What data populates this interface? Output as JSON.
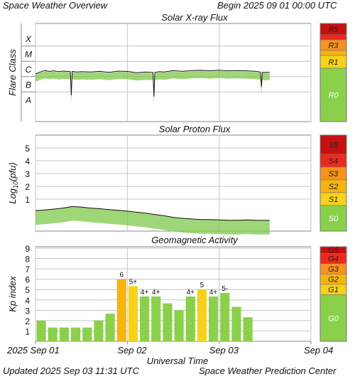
{
  "header": {
    "title": "Space Weather Overview",
    "begin": "Begin 2025 09 01 00:00 UTC"
  },
  "footer": {
    "updated": "Updated 2025 Sep 03 11:31 UTC",
    "credit": "Space Weather Prediction Center"
  },
  "x_axis": {
    "label": "Universal Time",
    "tick_labels": [
      "2025 Sep 01",
      "Sep 02",
      "Sep 03",
      "Sep 04"
    ]
  },
  "colors": {
    "trace": "#111111",
    "trace_fill": "#7fc84a",
    "bar_green": "#8bd04a",
    "bar_yellow": "#f6d21a",
    "bar_orange": "#f6b40e",
    "grid": "#c4c4c4",
    "level_R0": "#8bd04a",
    "level_1": "#f6d21a",
    "level_2": "#f6b40e",
    "level_3": "#f6921e",
    "level_4": "#ec2a1c",
    "level_5": "#c81010"
  },
  "chart_data": [
    {
      "type": "line",
      "title": "Solar X-ray Flux",
      "ylabel": "Flare Class",
      "y_ticks": [
        "A",
        "B",
        "C",
        "M",
        "X"
      ],
      "y_scale": "log",
      "x_range_days": [
        0,
        3
      ],
      "series": [
        {
          "x": [
            0.0,
            0.05,
            0.1,
            0.15,
            0.2,
            0.25,
            0.3,
            0.35,
            0.38,
            0.39,
            0.4,
            0.45,
            0.5,
            0.6,
            0.7,
            0.8,
            0.9,
            1.0,
            1.1,
            1.2,
            1.28,
            1.29,
            1.3,
            1.35,
            1.4,
            1.5,
            1.6,
            1.7,
            1.8,
            1.9,
            2.0,
            2.1,
            2.2,
            2.3,
            2.4,
            2.45,
            2.46,
            2.47,
            2.5,
            2.55
          ],
          "y": [
            1.5e-06,
            2e-06,
            2.5e-06,
            2.2e-06,
            2.4e-06,
            2.1e-06,
            2.3e-06,
            2.2e-06,
            2.1e-06,
            6e-08,
            2.2e-06,
            2e-06,
            2.1e-06,
            2e-06,
            2.2e-06,
            1.9e-06,
            2.3e-06,
            2.2e-06,
            1.8e-06,
            2e-06,
            1.9e-06,
            5e-08,
            1.9e-06,
            2.1e-06,
            2e-06,
            2.5e-06,
            2.2e-06,
            2.5e-06,
            2.6e-06,
            2.4e-06,
            2.6e-06,
            2.4e-06,
            2.5e-06,
            2.4e-06,
            2.2e-06,
            2e-06,
            2.2e-07,
            1.9e-06,
            1.9e-06,
            1.9e-06
          ]
        }
      ],
      "scale_levels": [
        "R5",
        "R3",
        "R1",
        "R0"
      ]
    },
    {
      "type": "line",
      "title": "Solar Proton Flux",
      "ylabel": "Log10(pfu)",
      "ylim": [
        -1.5,
        6
      ],
      "y_ticks": [
        "1",
        "2",
        "3",
        "4",
        "5"
      ],
      "x_range_days": [
        0,
        3
      ],
      "series": [
        {
          "x": [
            0.0,
            0.1,
            0.2,
            0.3,
            0.4,
            0.5,
            0.6,
            0.7,
            0.8,
            0.9,
            1.0,
            1.1,
            1.2,
            1.3,
            1.4,
            1.5,
            1.6,
            1.7,
            1.8,
            1.9,
            2.0,
            2.1,
            2.2,
            2.3,
            2.4,
            2.5,
            2.55
          ],
          "y": [
            0.1,
            0.15,
            0.22,
            0.3,
            0.42,
            0.38,
            0.3,
            0.25,
            0.18,
            0.12,
            0.06,
            -0.02,
            -0.1,
            -0.2,
            -0.3,
            -0.42,
            -0.5,
            -0.55,
            -0.6,
            -0.6,
            -0.62,
            -0.65,
            -0.65,
            -0.63,
            -0.65,
            -0.66,
            -0.65
          ]
        }
      ],
      "scale_levels": [
        "S5",
        "S4",
        "S3",
        "S2",
        "S1",
        "S0"
      ]
    },
    {
      "type": "bar",
      "title": "Geomagnetic Activity",
      "ylabel": "Kp index",
      "ylim": [
        0,
        9
      ],
      "y_ticks": [
        "1",
        "2",
        "3",
        "4",
        "5",
        "6",
        "7",
        "8",
        "9"
      ],
      "x_range_days": [
        0,
        3
      ],
      "bar_width_days": 0.125,
      "values": [
        2.0,
        1.33,
        1.33,
        1.33,
        1.33,
        2.0,
        2.67,
        6.0,
        5.33,
        4.33,
        4.33,
        3.67,
        3.0,
        4.33,
        5.0,
        4.33,
        4.67,
        3.33,
        2.33
      ],
      "bar_labels": [
        "",
        "",
        "",
        "",
        "",
        "",
        "",
        "6",
        "5+",
        "4+",
        "4+",
        "",
        "",
        "4+",
        "5",
        "4+",
        "5-",
        "",
        ""
      ],
      "scale_levels": [
        "G5",
        "G4",
        "G3",
        "G2",
        "G1",
        "G0"
      ]
    }
  ]
}
